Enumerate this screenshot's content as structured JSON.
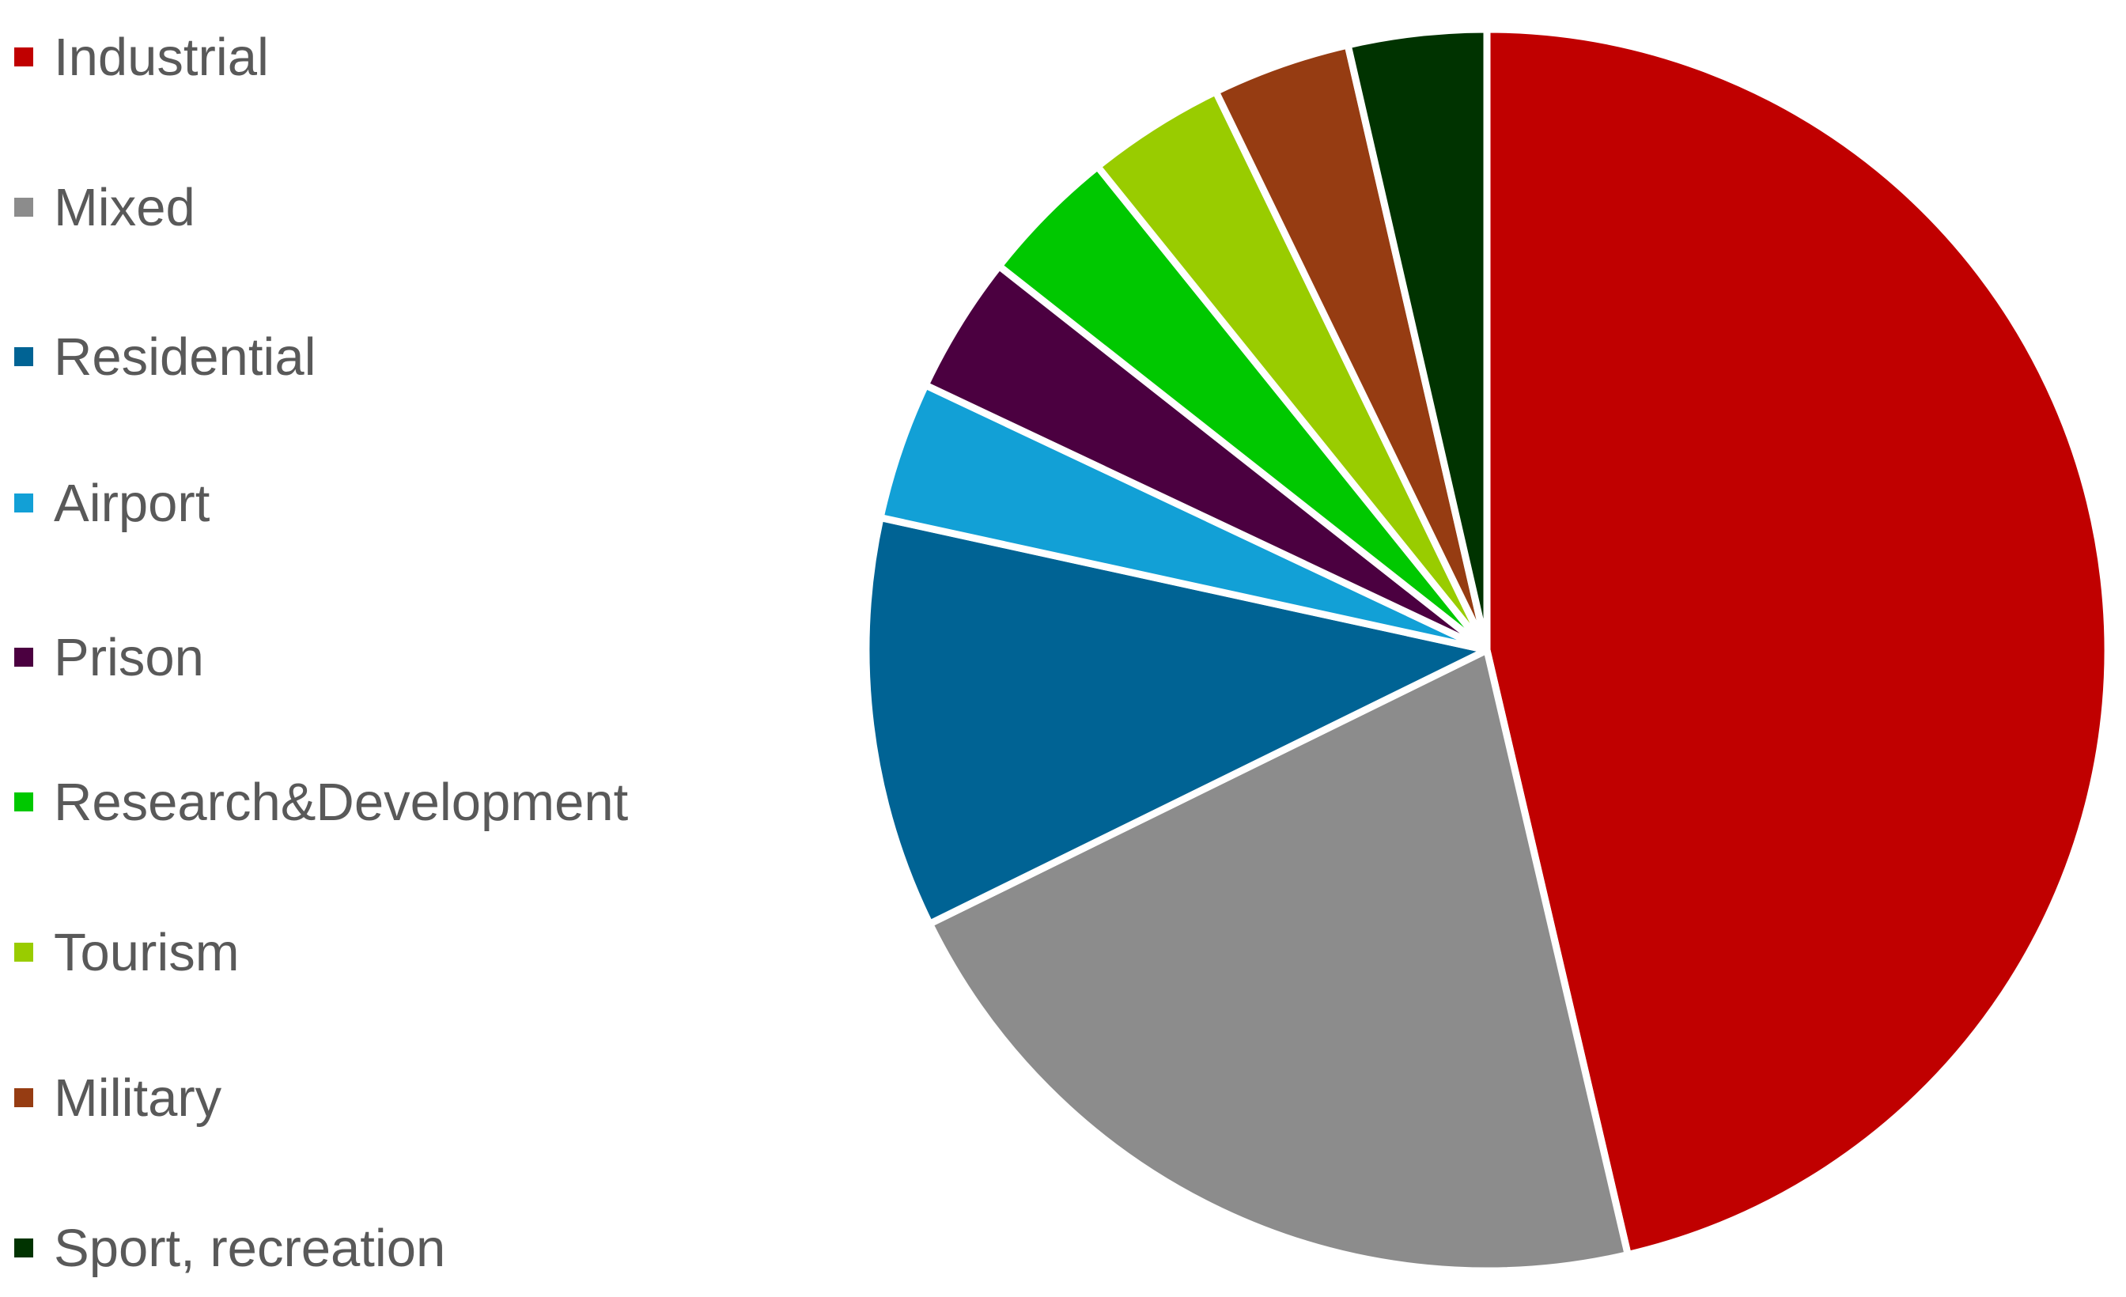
{
  "chart_data": {
    "type": "pie",
    "title": "",
    "legend_position": "left",
    "slices": [
      {
        "label": "Industrial",
        "value": 46.4,
        "color": "#C00000"
      },
      {
        "label": "Mixed",
        "value": 21.4,
        "color": "#8C8C8C"
      },
      {
        "label": "Residential",
        "value": 10.7,
        "color": "#006394"
      },
      {
        "label": "Airport",
        "value": 3.6,
        "color": "#12A0D6"
      },
      {
        "label": "Prison",
        "value": 3.6,
        "color": "#4B0040"
      },
      {
        "label": "Research&Development",
        "value": 3.6,
        "color": "#00C800"
      },
      {
        "label": "Tourism",
        "value": 3.6,
        "color": "#99CC00"
      },
      {
        "label": "Military",
        "value": 3.6,
        "color": "#963C12"
      },
      {
        "label": "Sport, recreation",
        "value": 3.6,
        "color": "#003300"
      }
    ]
  }
}
